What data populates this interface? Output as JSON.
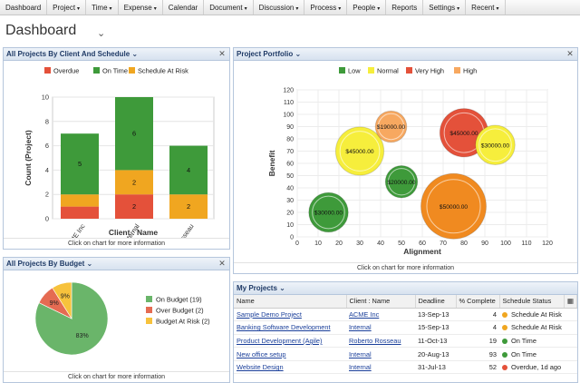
{
  "nav": [
    {
      "label": "Dashboard",
      "caret": false
    },
    {
      "label": "Project",
      "caret": true
    },
    {
      "label": "Time",
      "caret": true
    },
    {
      "label": "Expense",
      "caret": true
    },
    {
      "label": "Calendar",
      "caret": false
    },
    {
      "label": "Document",
      "caret": true
    },
    {
      "label": "Discussion",
      "caret": true
    },
    {
      "label": "Process",
      "caret": true
    },
    {
      "label": "People",
      "caret": true
    },
    {
      "label": "Reports",
      "caret": false
    },
    {
      "label": "Settings",
      "caret": true
    },
    {
      "label": "Recent",
      "caret": true
    }
  ],
  "page_title": "Dashboard",
  "footer_text": "Click on chart for more information",
  "panels": {
    "client_schedule": {
      "title": "All Projects By Client And Schedule"
    },
    "portfolio": {
      "title": "Project Portfolio"
    },
    "budget": {
      "title": "All Projects By Budget"
    },
    "my_projects": {
      "title": "My Projects"
    }
  },
  "colors": {
    "green": "#3e9a3a",
    "orange": "#f0a620",
    "red": "#e4513a",
    "yellow": "#f6ee3c",
    "lightorange": "#f7a860",
    "pie_green": "#6ab56a",
    "pie_red": "#e56b52",
    "pie_yellow": "#f7c23c"
  },
  "chart_data": [
    {
      "type": "bar",
      "stacked": true,
      "categories": [
        "ACME Inc",
        "Internal",
        "Roberto Rosseau"
      ],
      "series": [
        {
          "name": "Overdue",
          "color": "#e4513a",
          "values": [
            1,
            2,
            0
          ]
        },
        {
          "name": "Schedule At Risk",
          "color": "#f0a620",
          "values": [
            1,
            2,
            2
          ]
        },
        {
          "name": "On Time",
          "color": "#3e9a3a",
          "values": [
            5,
            6,
            4
          ]
        }
      ],
      "legend": [
        "Overdue",
        "On Time",
        "Schedule At Risk"
      ],
      "data_labels": [
        [
          null,
          "2",
          null
        ],
        [
          null,
          "2",
          "2"
        ],
        [
          "5",
          "6",
          "4"
        ]
      ],
      "xlabel": "Client : Name",
      "ylabel": "Count (Project)",
      "ylim": [
        0,
        10
      ],
      "yticks": [
        "0",
        "2",
        "4",
        "6",
        "8",
        "10"
      ],
      "grid": true,
      "legend_position": "top"
    },
    {
      "type": "scatter",
      "bubble": true,
      "legend": [
        {
          "name": "Low",
          "color": "#3e9a3a"
        },
        {
          "name": "Normal",
          "color": "#f6ee3c"
        },
        {
          "name": "Very High",
          "color": "#e4513a"
        },
        {
          "name": "High",
          "color": "#f7a860"
        }
      ],
      "points": [
        {
          "x": 15,
          "y": 20,
          "size": 30000,
          "label": "$30000.00",
          "color": "#3e9a3a"
        },
        {
          "x": 30,
          "y": 70,
          "size": 45000,
          "label": "$45000.00",
          "color": "#f6ee3c"
        },
        {
          "x": 45,
          "y": 90,
          "size": 19000,
          "label": "$19000.00",
          "color": "#f7a860"
        },
        {
          "x": 50,
          "y": 45,
          "size": 20000,
          "label": "$20000.00",
          "color": "#3e9a3a"
        },
        {
          "x": 75,
          "y": 25,
          "size": 50000,
          "label": "$50000.00",
          "color": "#f08a20"
        },
        {
          "x": 80,
          "y": 85,
          "size": 45000,
          "label": "$45000.00",
          "color": "#e4513a"
        },
        {
          "x": 95,
          "y": 75,
          "size": 30000,
          "label": "$30000.00",
          "color": "#f6ee3c"
        }
      ],
      "xlabel": "Alignment",
      "ylabel": "Benefit",
      "xlim": [
        0,
        120
      ],
      "ylim": [
        0,
        120
      ],
      "xticks": [
        "0",
        "10",
        "20",
        "30",
        "40",
        "50",
        "60",
        "70",
        "80",
        "90",
        "100",
        "110",
        "120"
      ],
      "yticks": [
        "0",
        "10",
        "20",
        "30",
        "40",
        "50",
        "60",
        "70",
        "80",
        "90",
        "100",
        "110",
        "120"
      ],
      "grid": true,
      "legend_position": "top"
    },
    {
      "type": "pie",
      "slices": [
        {
          "name": "On Budget (19)",
          "value": 83,
          "label": "83%",
          "color": "#6ab56a"
        },
        {
          "name": "Over Budget (2)",
          "value": 9,
          "label": "9%",
          "color": "#e56b52"
        },
        {
          "name": "Budget At Risk (2)",
          "value": 9,
          "label": "9%",
          "color": "#f7c23c"
        }
      ],
      "legend_position": "right"
    }
  ],
  "table": {
    "headers": [
      "Name",
      "Client : Name",
      "Deadline",
      "% Complete",
      "Schedule Status"
    ],
    "rows": [
      {
        "name": "Sample Demo Project",
        "client": "ACME Inc",
        "deadline": "13-Sep-13",
        "pct": "4",
        "status": "Schedule At Risk",
        "status_color": "#f0a620"
      },
      {
        "name": "Banking Software Development",
        "client": "Internal",
        "deadline": "15-Sep-13",
        "pct": "4",
        "status": "Schedule At Risk",
        "status_color": "#f0a620"
      },
      {
        "name": "Product Development (Agile)",
        "client": "Roberto Rosseau",
        "deadline": "11-Oct-13",
        "pct": "19",
        "status": "On Time",
        "status_color": "#3e9a3a"
      },
      {
        "name": "New office setup",
        "client": "Internal",
        "deadline": "20-Aug-13",
        "pct": "93",
        "status": "On Time",
        "status_color": "#3e9a3a"
      },
      {
        "name": "Website Design",
        "client": "Internal",
        "deadline": "31-Jul-13",
        "pct": "52",
        "status": "Overdue, 1d ago",
        "status_color": "#e4513a"
      }
    ]
  }
}
